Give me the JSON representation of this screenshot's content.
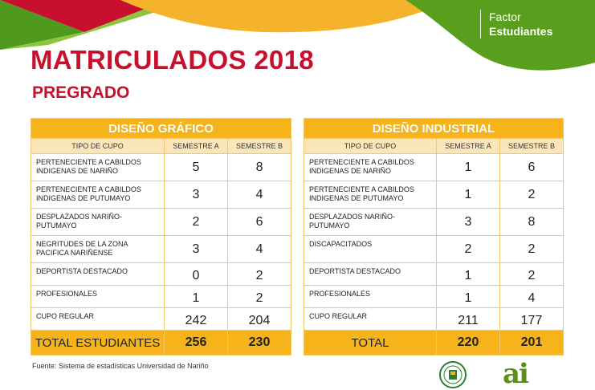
{
  "brand": {
    "factor_line1": "Factor",
    "factor_line2": "Estudiantes",
    "colors": {
      "red": "#c8102e",
      "yellow": "#f6b41a",
      "green": "#5a9e1e",
      "orange": "#e07b18"
    }
  },
  "header": {
    "title": "MATRICULADOS 2018",
    "subtitle": "PREGRADO"
  },
  "tables": [
    {
      "program": "DISEÑO GRÁFICO",
      "col_headers": [
        "TIPO DE CUPO",
        "SEMESTRE A",
        "SEMESTRE B"
      ],
      "rows": [
        {
          "label": "PERTENECIENTE A CABILDOS INDIGENAS DE NARIÑO",
          "a": "5",
          "b": "8"
        },
        {
          "label": "PERTENECIENTE A CABILDOS INDIGENAS DE PUTUMAYO",
          "a": "3",
          "b": "4"
        },
        {
          "label": "DESPLAZADOS NARIÑO-PUTUMAYO",
          "a": "2",
          "b": "6"
        },
        {
          "label": "NEGRITUDES DE LA ZONA PACIFICA NARIÑENSE",
          "a": "3",
          "b": "4"
        },
        {
          "label": "DEPORTISTA DESTACADO",
          "a": "0",
          "b": "2"
        },
        {
          "label": "PROFESIONALES",
          "a": "1",
          "b": "2"
        },
        {
          "label": "CUPO REGULAR",
          "a": "242",
          "b": "204"
        }
      ],
      "total": {
        "label": "TOTAL ESTUDIANTES",
        "a": "256",
        "b": "230"
      }
    },
    {
      "program": "DISEÑO INDUSTRIAL",
      "col_headers": [
        "TIPO DE CUPO",
        "SEMESTRE A",
        "SEMESTRE B"
      ],
      "rows": [
        {
          "label": "PERTENECIENTE A CABILDOS INDIGENAS DE NARIÑO",
          "a": "1",
          "b": "6"
        },
        {
          "label": "PERTENECIENTE A CABILDOS INDIGENAS DE PUTUMAYO",
          "a": "1",
          "b": "2"
        },
        {
          "label": "DESPLAZADOS NARIÑO-PUTUMAYO",
          "a": "3",
          "b": "8"
        },
        {
          "label": "DISCAPACITADOS",
          "a": "2",
          "b": "2"
        },
        {
          "label": "DEPORTISTA DESTACADO",
          "a": "1",
          "b": "2"
        },
        {
          "label": "PROFESIONALES",
          "a": "1",
          "b": "4"
        },
        {
          "label": "CUPO REGULAR",
          "a": "211",
          "b": "177"
        }
      ],
      "total": {
        "label": "TOTAL",
        "a": "220",
        "b": "201"
      }
    }
  ],
  "footer": {
    "source": "Fuente: Sistema de estadísticas Universidad de Nariño",
    "logo_text": "ai",
    "seal_icon": "university-seal-icon"
  }
}
